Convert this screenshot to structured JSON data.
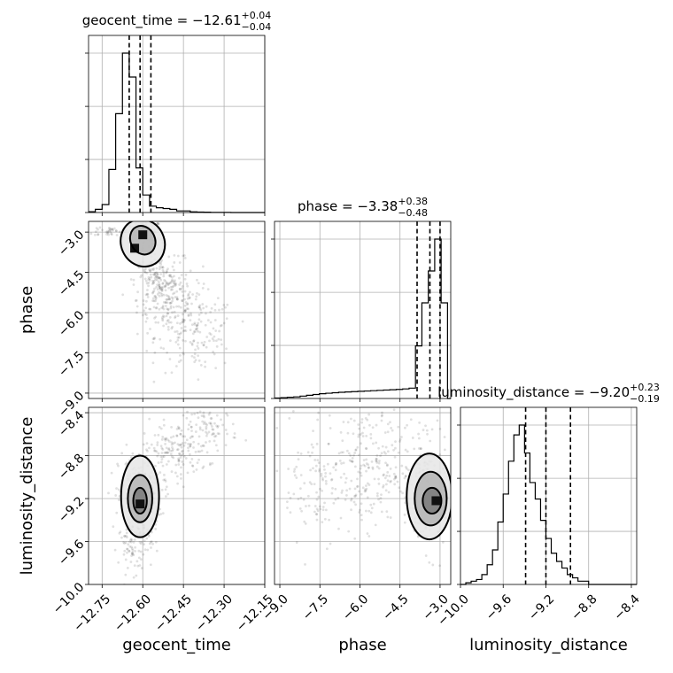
{
  "chart_data": {
    "type": "corner",
    "parameters": [
      {
        "name": "geocent_time",
        "axis_label": "geocent_time",
        "range": [
          -12.8,
          -12.15
        ],
        "ticks": [
          -12.75,
          -12.6,
          -12.45,
          -12.3,
          -12.15
        ],
        "tick_labels": [
          "−12.75",
          "−12.60",
          "−12.45",
          "−12.30",
          "−12.15"
        ],
        "title": {
          "main": "geocent_time = −12.61",
          "upper": "+0.04",
          "lower": "−0.04"
        },
        "quantiles": [
          -12.65,
          -12.61,
          -12.57
        ],
        "hist_bins": [
          -12.8,
          -12.775,
          -12.75,
          -12.725,
          -12.7,
          -12.675,
          -12.65,
          -12.625,
          -12.6,
          -12.575,
          -12.55,
          -12.525,
          -12.5,
          -12.475,
          -12.45,
          -12.425,
          -12.4,
          -12.375,
          -12.35,
          -12.325,
          -12.3,
          -12.275,
          -12.25,
          -12.225,
          -12.2,
          -12.175,
          -12.15
        ],
        "hist_counts": [
          0.5,
          2,
          5,
          27,
          62,
          100,
          85,
          28,
          11,
          4,
          3,
          2.5,
          2,
          1,
          1,
          0.4,
          0.3,
          0.2,
          0.1,
          0.1,
          0.1,
          0,
          0,
          0,
          0,
          0
        ]
      },
      {
        "name": "phase",
        "axis_label": "phase",
        "range": [
          -9.2,
          -2.6
        ],
        "ticks": [
          -9.0,
          -7.5,
          -6.0,
          -4.5,
          -3.0
        ],
        "tick_labels": [
          "−9.0",
          "−7.5",
          "−6.0",
          "−4.5",
          "−3.0"
        ],
        "title": {
          "main": "phase = −3.38",
          "upper": "+0.38",
          "lower": "−0.48"
        },
        "quantiles": [
          -3.86,
          -3.38,
          -3.0
        ],
        "hist_bins": [
          -9.2,
          -8.96,
          -8.72,
          -8.48,
          -8.24,
          -8.0,
          -7.76,
          -7.52,
          -7.28,
          -7.04,
          -6.8,
          -6.56,
          -6.32,
          -6.08,
          -5.84,
          -5.6,
          -5.36,
          -5.12,
          -4.88,
          -4.64,
          -4.4,
          -4.16,
          -3.92,
          -3.68,
          -3.44,
          -3.2,
          -2.96,
          -2.72,
          -2.6
        ],
        "hist_counts": [
          0.3,
          0.5,
          0.8,
          1,
          1.5,
          2,
          2.5,
          3,
          3.3,
          3.6,
          3.9,
          4.1,
          4.3,
          4.5,
          4.7,
          4.9,
          5.1,
          5.3,
          5.5,
          5.7,
          6,
          6.5,
          33,
          60,
          80,
          100,
          60,
          0
        ]
      },
      {
        "name": "luminosity_distance",
        "axis_label": "luminosity_distance",
        "range": [
          -10.0,
          -8.35
        ],
        "ticks": [
          -10.0,
          -9.6,
          -9.2,
          -8.8,
          -8.4
        ],
        "tick_labels": [
          "−10.0",
          "−9.6",
          "−9.2",
          "−8.8",
          "−8.4"
        ],
        "title": {
          "main": "luminosity_distance = −9.20",
          "upper": "+0.23",
          "lower": "−0.19"
        },
        "quantiles": [
          -9.39,
          -9.2,
          -8.97
        ],
        "hist_bins": [
          -10.0,
          -9.95,
          -9.9,
          -9.85,
          -9.8,
          -9.75,
          -9.7,
          -9.65,
          -9.6,
          -9.55,
          -9.5,
          -9.45,
          -9.4,
          -9.35,
          -9.3,
          -9.25,
          -9.2,
          -9.15,
          -9.1,
          -9.05,
          -9.0,
          -8.95,
          -8.9,
          -8.85,
          -8.8,
          -8.75,
          -8.7,
          -8.65,
          -8.6,
          -8.55,
          -8.5,
          -8.45,
          -8.4,
          -8.35
        ],
        "hist_counts": [
          0,
          1,
          2,
          3,
          6,
          12,
          21,
          38,
          55,
          75,
          91,
          97,
          80,
          62,
          52,
          39,
          28,
          19,
          14,
          10,
          6,
          4,
          2,
          2,
          0,
          0,
          0,
          0,
          0,
          0,
          0,
          0,
          0
        ]
      }
    ],
    "pairs": [
      {
        "x": "geocent_time",
        "y": "phase",
        "scatter": {
          "clusters": [
            {
              "cx": -12.59,
              "cy": -3.2,
              "sx": 0.03,
              "sy": 0.35,
              "n": 140
            },
            {
              "cx": -12.72,
              "cy": -2.95,
              "sx": 0.05,
              "sy": 0.12,
              "n": 40
            },
            {
              "cx": -12.5,
              "cy": -5.5,
              "sx": 0.06,
              "sy": 0.7,
              "n": 200
            },
            {
              "cx": -12.4,
              "cy": -6.8,
              "sx": 0.07,
              "sy": 0.7,
              "n": 140
            },
            {
              "cx": -12.55,
              "cy": -4.8,
              "sx": 0.04,
              "sy": 0.45,
              "n": 120
            }
          ]
        },
        "contours": [
          {
            "cx": -12.6,
            "cy": -3.3,
            "rx": 0.045,
            "ry": 0.55,
            "rot": -25
          },
          {
            "cx": -12.6,
            "cy": -3.4,
            "rx": 0.08,
            "ry": 0.9,
            "rot": -25
          }
        ],
        "density_peaks": [
          {
            "x": -12.6,
            "y": -3.1
          },
          {
            "x": -12.63,
            "y": -3.6
          }
        ]
      },
      {
        "x": "geocent_time",
        "y": "luminosity_distance",
        "scatter": {
          "clusters": [
            {
              "cx": -12.61,
              "cy": -9.2,
              "sx": 0.04,
              "sy": 0.22,
              "n": 240
            },
            {
              "cx": -12.48,
              "cy": -8.75,
              "sx": 0.06,
              "sy": 0.13,
              "n": 150
            },
            {
              "cx": -12.35,
              "cy": -8.55,
              "sx": 0.05,
              "sy": 0.1,
              "n": 80
            },
            {
              "cx": -12.63,
              "cy": -9.65,
              "sx": 0.03,
              "sy": 0.12,
              "n": 80
            }
          ]
        },
        "contours": [
          {
            "cx": -12.61,
            "cy": -9.22,
            "rx": 0.025,
            "ry": 0.12,
            "rot": 0
          },
          {
            "cx": -12.61,
            "cy": -9.2,
            "rx": 0.045,
            "ry": 0.22,
            "rot": 0
          },
          {
            "cx": -12.61,
            "cy": -9.18,
            "rx": 0.07,
            "ry": 0.38,
            "rot": 0
          }
        ],
        "density_peaks": [
          {
            "x": -12.61,
            "y": -9.25
          }
        ]
      },
      {
        "x": "phase",
        "y": "luminosity_distance",
        "scatter": {
          "clusters": [
            {
              "cx": -3.4,
              "cy": -9.2,
              "sx": 0.35,
              "sy": 0.25,
              "n": 180
            },
            {
              "cx": -5.8,
              "cy": -8.9,
              "sx": 1.1,
              "sy": 0.28,
              "n": 300
            },
            {
              "cx": -7.8,
              "cy": -9.1,
              "sx": 0.5,
              "sy": 0.3,
              "n": 60
            }
          ]
        },
        "contours": [
          {
            "cx": -3.3,
            "cy": -9.22,
            "rx": 0.35,
            "ry": 0.12,
            "rot": 0
          },
          {
            "cx": -3.35,
            "cy": -9.2,
            "rx": 0.6,
            "ry": 0.25,
            "rot": 0
          },
          {
            "cx": -3.4,
            "cy": -9.18,
            "rx": 0.85,
            "ry": 0.4,
            "rot": 0
          }
        ],
        "density_peaks": [
          {
            "x": -3.15,
            "y": -9.22
          }
        ]
      }
    ]
  }
}
